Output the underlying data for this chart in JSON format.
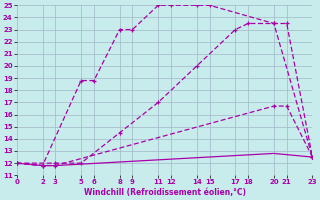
{
  "xlabel": "Windchill (Refroidissement éolien,°C)",
  "bg_color": "#c8ecec",
  "grid_color": "#a0b8c8",
  "line_color": "#aa00aa",
  "xmin": 0,
  "xmax": 23,
  "ymin": 11,
  "ymax": 25,
  "xticks": [
    0,
    2,
    3,
    5,
    6,
    8,
    9,
    11,
    12,
    14,
    15,
    17,
    18,
    20,
    21,
    23
  ],
  "yticks": [
    11,
    12,
    13,
    14,
    15,
    16,
    17,
    18,
    19,
    20,
    21,
    22,
    23,
    24,
    25
  ],
  "line1_x": [
    0,
    2,
    5,
    6,
    8,
    9,
    11,
    12,
    14,
    15,
    20,
    23
  ],
  "line1_y": [
    12,
    11.8,
    18.8,
    18.8,
    23,
    23,
    25,
    25,
    25,
    25,
    23.5,
    12.5
  ],
  "line2_x": [
    0,
    3,
    5,
    8,
    11,
    14,
    17,
    18,
    20,
    21,
    23
  ],
  "line2_y": [
    12,
    12,
    12,
    14.5,
    17,
    20,
    23,
    23.5,
    23.5,
    23.5,
    12.5
  ],
  "line3_x": [
    0,
    2,
    3,
    20,
    21,
    23
  ],
  "line3_y": [
    12,
    11.8,
    11.8,
    16.7,
    16.7,
    12.5
  ],
  "line4_x": [
    0,
    2,
    3,
    20,
    23
  ],
  "line4_y": [
    12,
    11.8,
    11.8,
    12.8,
    12.5
  ]
}
